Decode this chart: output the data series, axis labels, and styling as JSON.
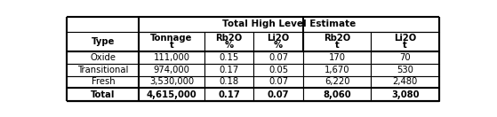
{
  "title": "Total High Level Estimate",
  "col_headers_line1": [
    "Type",
    "Tonnage",
    "Rb2O",
    "Li2O",
    "Rb2O",
    "Li2O"
  ],
  "col_headers_line2": [
    "",
    "t",
    "%",
    "%",
    "t",
    "t"
  ],
  "rows": [
    [
      "Oxide",
      "111,000",
      "0.15",
      "0.07",
      "170",
      "70"
    ],
    [
      "Transitional",
      "974,000",
      "0.17",
      "0.05",
      "1,670",
      "530"
    ],
    [
      "Fresh",
      "3,530,000",
      "0.18",
      "0.07",
      "6,220",
      "2,480"
    ]
  ],
  "total_row": [
    "Total",
    "4,615,000",
    "0.17",
    "0.07",
    "8,060",
    "3,080"
  ],
  "bg_color": "#ffffff",
  "border_color": "#000000"
}
